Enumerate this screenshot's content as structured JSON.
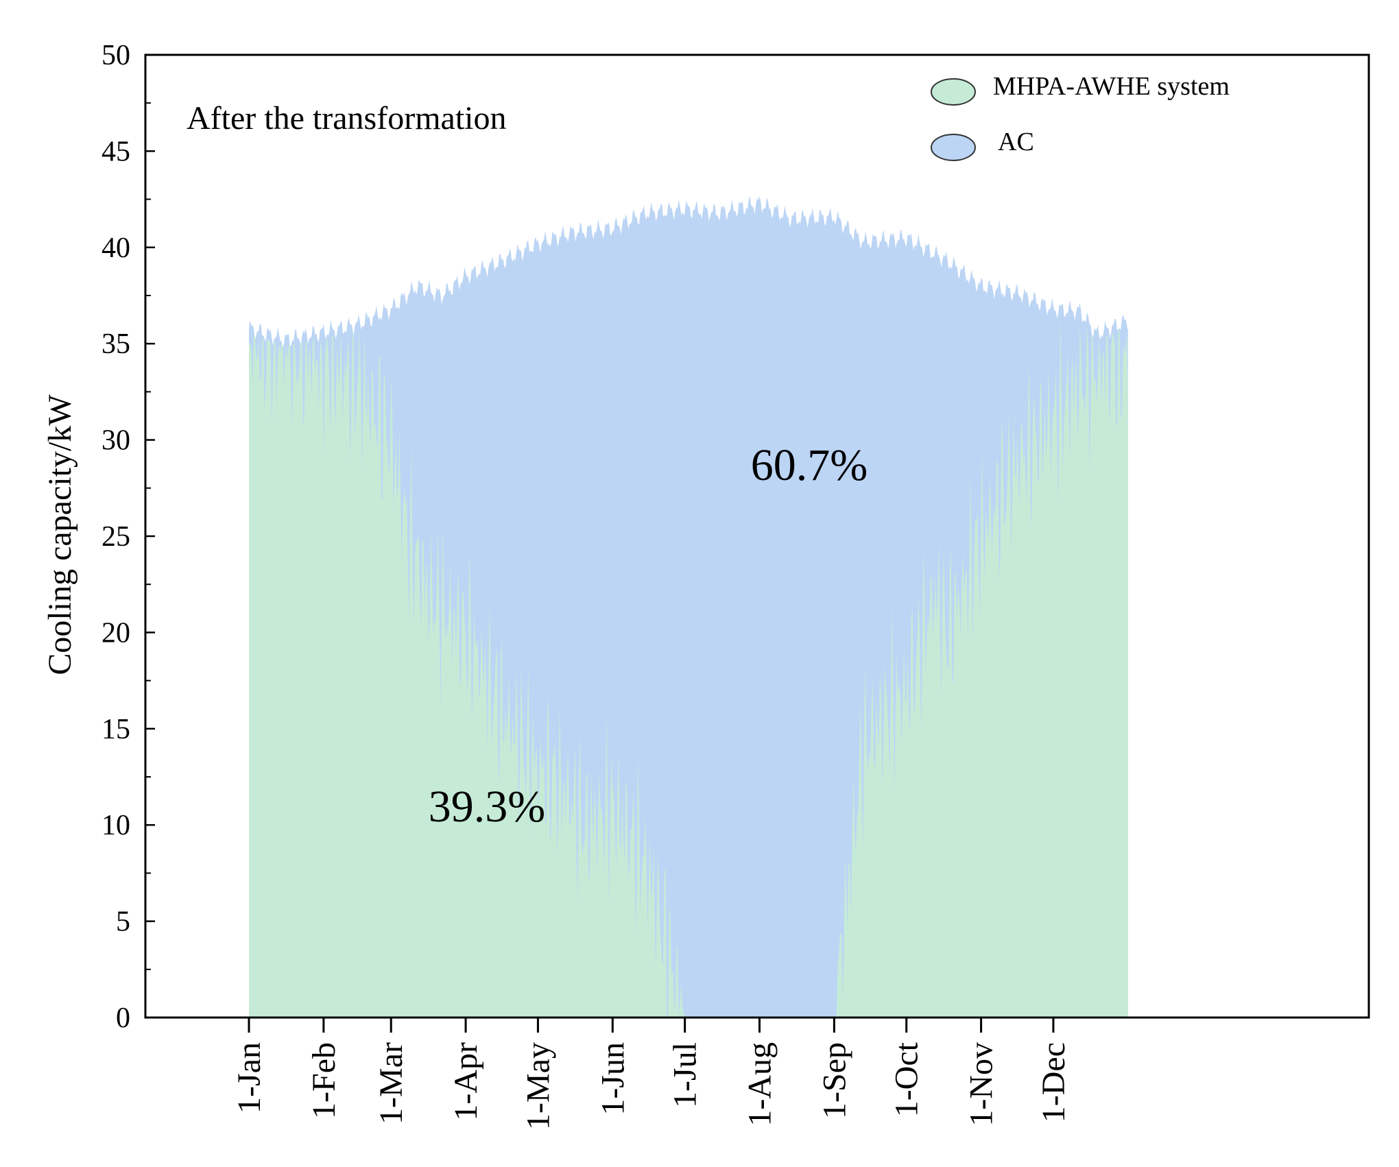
{
  "chart_data": {
    "type": "area",
    "title": "",
    "annotation_top_left": "After the transformation",
    "ylabel": "Cooling capacity/kW",
    "xlabel": "",
    "ylim": [
      0,
      50
    ],
    "xlim_days": [
      -43,
      465
    ],
    "y_ticks": [
      0,
      5,
      10,
      15,
      20,
      25,
      30,
      35,
      40,
      45,
      50
    ],
    "y_tick_labels": [
      "0",
      "5",
      "10",
      "15",
      "20",
      "25",
      "30",
      "35",
      "40",
      "45",
      "50"
    ],
    "x_ticks_day": [
      0,
      31,
      59,
      90,
      120,
      151,
      181,
      212,
      243,
      273,
      304,
      334
    ],
    "x_tick_labels": [
      "1-Jan",
      "1-Feb",
      "1-Mar",
      "1-Apr",
      "1-May",
      "1-Jun",
      "1-Jul",
      "1-Aug",
      "1-Sep",
      "1-Oct",
      "1-Nov",
      "1-Dec"
    ],
    "series": [
      {
        "name": "MHPA-AWHE system",
        "color": "#c5ebd6",
        "share_label": "39.3%",
        "days": [
          0,
          15,
          31,
          45,
          59,
          66,
          75,
          90,
          105,
          120,
          130,
          140,
          151,
          165,
          175,
          181,
          200,
          212,
          225,
          243,
          255,
          265,
          273,
          285,
          290,
          304,
          320,
          334,
          345,
          355,
          365
        ],
        "values": [
          35,
          35,
          34,
          33,
          30,
          25,
          22,
          20,
          16,
          13,
          12,
          10,
          11,
          8,
          3,
          0,
          0,
          0,
          0,
          0,
          14,
          16,
          17,
          22,
          20,
          25,
          29,
          31,
          33,
          34,
          34
        ]
      },
      {
        "name": "AC",
        "color": "#bcd5f5",
        "share_label": "60.7%",
        "days": [
          0,
          15,
          31,
          45,
          59,
          70,
          80,
          90,
          105,
          120,
          135,
          151,
          165,
          181,
          195,
          212,
          225,
          243,
          255,
          273,
          290,
          304,
          320,
          334,
          345,
          352,
          365
        ],
        "values": [
          35.8,
          35.2,
          35.6,
          36,
          36.8,
          38,
          37.5,
          38.5,
          39.3,
          40.2,
          40.8,
          41,
          41.8,
          42,
          41.8,
          42.3,
          41.5,
          41.6,
          40.3,
          40.5,
          39.3,
          38,
          37.6,
          36.8,
          36.7,
          35.5,
          36.2
        ]
      }
    ],
    "legend": {
      "position": "top-right"
    },
    "grid": false
  }
}
